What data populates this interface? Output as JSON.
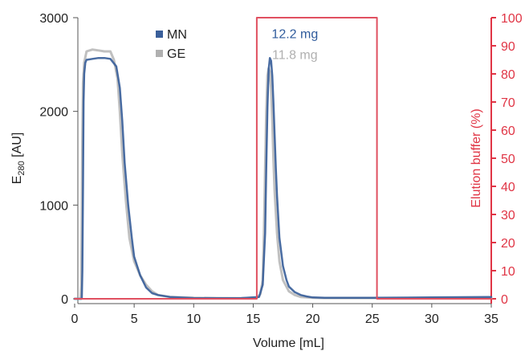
{
  "chart_data": {
    "type": "line",
    "xlabel": "Volume [mL]",
    "ylabel_main": "E",
    "ylabel_sub": "280",
    "ylabel_unit": " [AU]",
    "y2label": "Elution buffer (%)",
    "xlim": [
      0,
      35
    ],
    "ylim": [
      0,
      3000
    ],
    "y2lim": [
      0,
      100
    ],
    "x_ticks": [
      0,
      5,
      10,
      15,
      20,
      25,
      30,
      35
    ],
    "y_ticks": [
      0,
      1000,
      2000,
      3000
    ],
    "y2_ticks": [
      0,
      10,
      20,
      30,
      40,
      50,
      60,
      70,
      80,
      90,
      100
    ],
    "grid": false,
    "legend_position": "top-left",
    "series": [
      {
        "name": "GE",
        "color": "#c0c0c0",
        "axis": "left",
        "x": [
          0.0,
          0.5,
          0.55,
          0.6,
          0.65,
          0.7,
          0.8,
          1.0,
          1.5,
          2.0,
          2.5,
          3.0,
          3.3,
          3.6,
          3.8,
          4.0,
          4.3,
          4.6,
          5.0,
          5.5,
          6.0,
          6.5,
          7.0,
          8.0,
          10,
          12,
          14,
          15.3,
          15.6,
          15.8,
          15.9,
          16.0,
          16.1,
          16.2,
          16.3,
          16.4,
          16.5,
          16.6,
          16.7,
          16.8,
          17.0,
          17.2,
          17.5,
          18.0,
          18.5,
          19.0,
          20.0,
          21.0,
          23,
          25,
          30,
          35
        ],
        "y": [
          0,
          0,
          150,
          800,
          1700,
          2300,
          2520,
          2640,
          2660,
          2650,
          2640,
          2640,
          2550,
          2350,
          2000,
          1550,
          1050,
          650,
          400,
          250,
          150,
          80,
          40,
          20,
          10,
          8,
          6,
          10,
          50,
          200,
          700,
          1400,
          2000,
          2380,
          2460,
          2420,
          2250,
          1900,
          1500,
          1150,
          700,
          400,
          200,
          80,
          40,
          20,
          10,
          8,
          8,
          8,
          8,
          8
        ]
      },
      {
        "name": "MN",
        "color": "#3a5f9a",
        "axis": "left",
        "x": [
          0.0,
          0.6,
          0.65,
          0.7,
          0.75,
          0.8,
          0.9,
          1.0,
          1.5,
          2.0,
          2.5,
          3.0,
          3.5,
          3.8,
          4.0,
          4.2,
          4.5,
          4.8,
          5.0,
          5.5,
          6.0,
          6.5,
          7.0,
          8.0,
          10,
          12,
          14,
          15.5,
          15.8,
          16.0,
          16.1,
          16.2,
          16.3,
          16.4,
          16.5,
          16.6,
          16.7,
          16.8,
          16.9,
          17.0,
          17.2,
          17.5,
          17.8,
          18.0,
          18.5,
          19.0,
          19.5,
          20.0,
          21.0,
          23,
          25,
          30,
          35
        ],
        "y": [
          0,
          0,
          300,
          1200,
          2100,
          2400,
          2520,
          2550,
          2560,
          2570,
          2570,
          2560,
          2480,
          2250,
          1900,
          1450,
          1000,
          650,
          450,
          250,
          120,
          60,
          40,
          20,
          8,
          6,
          8,
          20,
          150,
          700,
          1400,
          2050,
          2450,
          2570,
          2540,
          2380,
          2100,
          1750,
          1400,
          1100,
          650,
          350,
          200,
          130,
          70,
          40,
          25,
          15,
          10,
          10,
          10,
          15,
          20
        ]
      },
      {
        "name": "Elution buffer",
        "color": "#e05060",
        "axis": "right",
        "x": [
          0,
          15.3,
          15.3,
          25.4,
          25.4,
          35
        ],
        "y": [
          0,
          0,
          100,
          100,
          0,
          0
        ]
      }
    ],
    "legend": [
      {
        "label": "MN",
        "color": "#3a5f9a"
      },
      {
        "label": "GE",
        "color": "#b0b0b0"
      }
    ],
    "annotations": [
      {
        "text": "12.2 mg",
        "color": "#2f5b9c",
        "x": 18.5,
        "y": 2780
      },
      {
        "text": "11.8 mg",
        "color": "#b0b0b0",
        "x": 18.5,
        "y": 2560
      }
    ]
  }
}
